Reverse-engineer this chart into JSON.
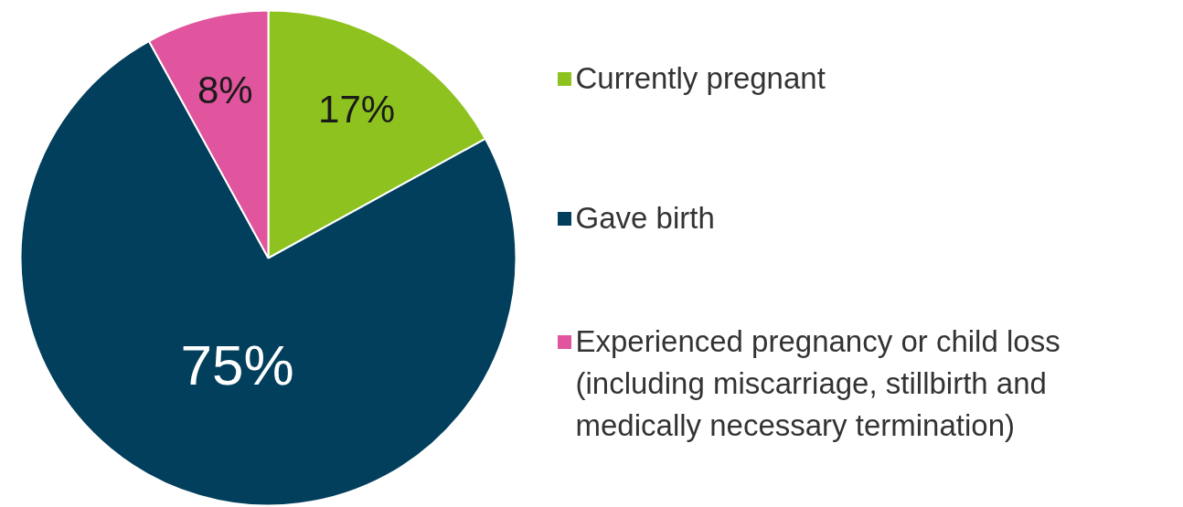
{
  "chart_data": {
    "type": "pie",
    "categories": [
      "Currently pregnant",
      "Gave birth",
      "Experienced pregnancy or child loss (including miscarriage, stillbirth and medically necessary termination)"
    ],
    "values": [
      17,
      75,
      8
    ],
    "colors": [
      "#8dc21f",
      "#023f5c",
      "#e0559d"
    ],
    "value_labels": [
      "17%",
      "75%",
      "8%"
    ],
    "legend": "right"
  }
}
